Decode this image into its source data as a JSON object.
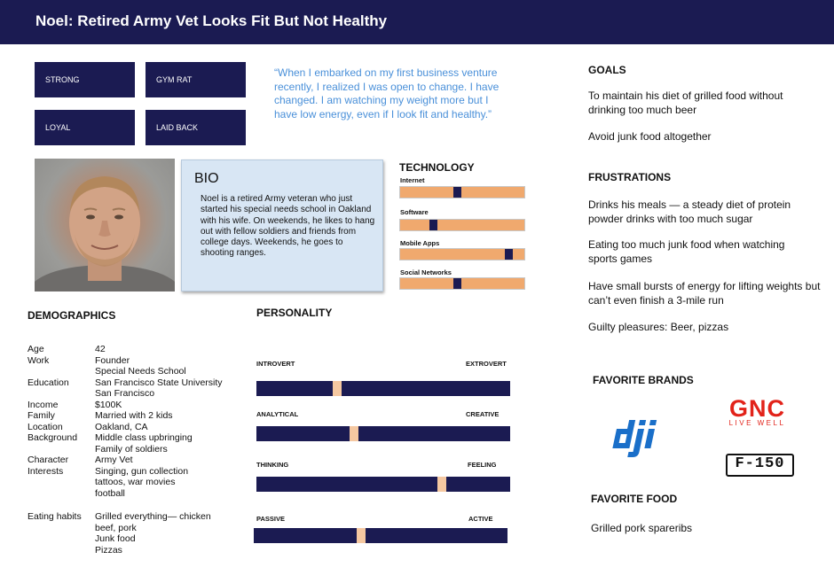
{
  "header": {
    "title": "Noel:  Retired Army Vet Looks Fit But Not Healthy"
  },
  "traits": [
    "STRONG",
    "GYM RAT",
    "LOYAL",
    "LAID BACK"
  ],
  "quote": "“When I embarked on my first business venture recently, I realized I was open to change. I have changed. I am watching my weight more but I have low energy, even if I look fit and healthy.”",
  "bio": {
    "title": "BIO",
    "text": "Noel is a retired Army veteran who just started his special needs school in Oakland with his wife. On weekends, he likes to hang out with fellow soldiers and friends from college days. Weekends, he goes to shooting ranges."
  },
  "technology": {
    "title": "TECHNOLOGY",
    "items": [
      {
        "label": "Internet",
        "level": 0.46
      },
      {
        "label": "Software",
        "level": 0.25
      },
      {
        "label": "Mobile Apps",
        "level": 0.9
      },
      {
        "label": "Social Networks",
        "level": 0.46
      }
    ]
  },
  "demographics": {
    "title": "DEMOGRAPHICS",
    "rows": [
      {
        "label": "Age",
        "value": "42"
      },
      {
        "label": "Work",
        "value": "Founder"
      },
      {
        "label": "",
        "value": "Special Needs School"
      },
      {
        "label": "Education",
        "value": "San Francisco State University"
      },
      {
        "label": "",
        "value": "San Francisco"
      },
      {
        "label": "Income",
        "value": "$100K"
      },
      {
        "label": "Family",
        "value": "Married with 2 kids"
      },
      {
        "label": "Location",
        "value": "Oakland, CA"
      },
      {
        "label": "Background",
        "value": "Middle class upbringing"
      },
      {
        "label": "",
        "value": "Family of soldiers"
      },
      {
        "label": "Character",
        "value": "Army Vet"
      },
      {
        "label": "Interests",
        "value": "Singing, gun collection"
      },
      {
        "label": "",
        "value": "tattoos, war movies"
      },
      {
        "label": "",
        "value": "football"
      }
    ],
    "eating": {
      "label": "Eating habits",
      "lines": [
        "Grilled everything— chicken",
        "beef, pork",
        "Junk food",
        "Pizzas"
      ]
    }
  },
  "personality": {
    "title": "PERSONALITY",
    "scales": [
      {
        "left": "INTROVERT",
        "right": "EXTROVERT",
        "level": 0.31
      },
      {
        "left": "ANALYTICAL",
        "right": "CREATIVE",
        "level": 0.38
      },
      {
        "left": "THINKING",
        "right": "FEELING",
        "level": 0.74
      },
      {
        "left": "PASSIVE",
        "right": "ACTIVE",
        "level": 0.42
      }
    ]
  },
  "goals": {
    "title": "GOALS",
    "items": [
      "To maintain his diet of grilled food without drinking too much beer",
      "Avoid junk food altogether"
    ]
  },
  "frustrations": {
    "title": "FRUSTRATIONS",
    "items": [
      "Drinks his meals — a steady diet of protein powder drinks with too much sugar",
      "Eating too much junk food when watching sports games",
      "Have small bursts of energy for lifting weights but can’t even finish a 3-mile run",
      "Guilty pleasures: Beer, pizzas"
    ]
  },
  "brands": {
    "title": "FAVORITE BRANDS",
    "logos": [
      {
        "name": "dji-logo",
        "text": "dji"
      },
      {
        "name": "gnc-logo",
        "text": "GNC",
        "subtext": "LIVE WELL"
      },
      {
        "name": "f150-logo",
        "text": "F-150"
      }
    ]
  },
  "food": {
    "title": "FAVORITE FOOD",
    "text": "Grilled pork spareribs"
  },
  "colors": {
    "navy": "#1b1b52",
    "orange": "#f0a96e",
    "quote_blue": "#4a90d9",
    "bio_bg": "#d8e6f4"
  }
}
